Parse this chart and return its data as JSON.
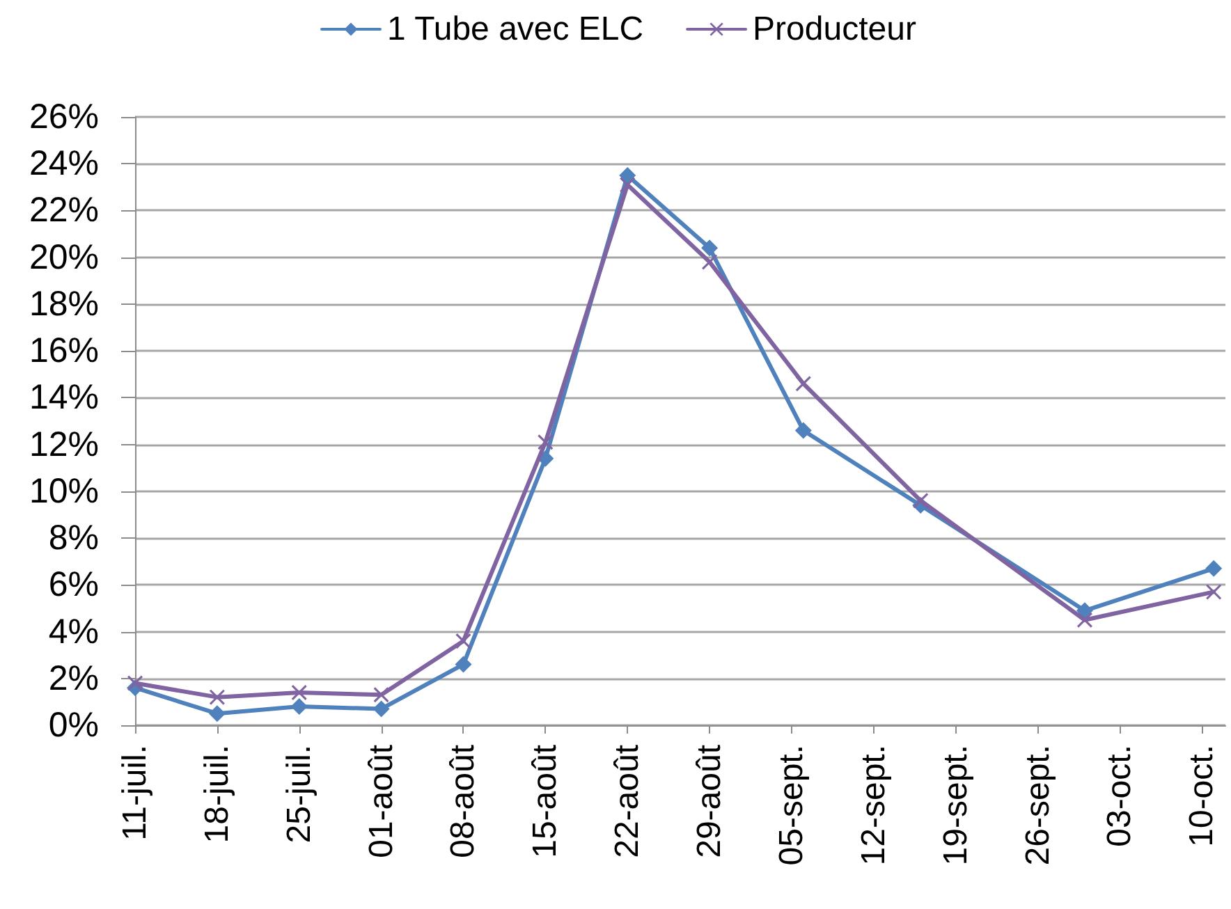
{
  "chart_data": {
    "type": "line",
    "x": [
      "--07-11",
      "--07-18",
      "--07-25",
      "--08-01",
      "--08-08",
      "--08-15",
      "--08-22",
      "--08-29",
      "--09-06",
      "--09-16",
      "--09-30",
      "--10-11"
    ],
    "series": [
      {
        "name": "1 Tube avec ELC",
        "color": "#4f81bd",
        "marker": "diamond",
        "values": [
          1.6,
          0.5,
          0.8,
          0.7,
          2.6,
          11.4,
          23.5,
          20.4,
          12.6,
          9.4,
          4.9,
          6.7
        ]
      },
      {
        "name": "Producteur",
        "color": "#8064a2",
        "marker": "cross",
        "values": [
          1.8,
          1.2,
          1.4,
          1.3,
          3.6,
          12.1,
          23.1,
          19.8,
          14.6,
          9.6,
          4.5,
          5.7
        ]
      }
    ],
    "xlim": [
      "--07-11",
      "--10-12"
    ],
    "xticks": [
      {
        "value": "--07-11",
        "label": "11-juil."
      },
      {
        "value": "--07-18",
        "label": "18-juil."
      },
      {
        "value": "--07-25",
        "label": "25-juil."
      },
      {
        "value": "--08-01",
        "label": "01-août"
      },
      {
        "value": "--08-08",
        "label": "08-août"
      },
      {
        "value": "--08-15",
        "label": "15-août"
      },
      {
        "value": "--08-22",
        "label": "22-août"
      },
      {
        "value": "--08-29",
        "label": "29-août"
      },
      {
        "value": "--09-05",
        "label": "05-sept."
      },
      {
        "value": "--09-12",
        "label": "12-sept."
      },
      {
        "value": "--09-19",
        "label": "19-sept."
      },
      {
        "value": "--09-26",
        "label": "26-sept."
      },
      {
        "value": "--10-03",
        "label": "03-oct."
      },
      {
        "value": "--10-10",
        "label": "10-oct."
      }
    ],
    "ylim": [
      0,
      26
    ],
    "yticks": [
      {
        "value": 0,
        "label": "0%"
      },
      {
        "value": 2,
        "label": "2%"
      },
      {
        "value": 4,
        "label": "4%"
      },
      {
        "value": 6,
        "label": "6%"
      },
      {
        "value": 8,
        "label": "8%"
      },
      {
        "value": 10,
        "label": "10%"
      },
      {
        "value": 12,
        "label": "12%"
      },
      {
        "value": 14,
        "label": "14%"
      },
      {
        "value": 16,
        "label": "16%"
      },
      {
        "value": 18,
        "label": "18%"
      },
      {
        "value": 20,
        "label": "20%"
      },
      {
        "value": 22,
        "label": "22%"
      },
      {
        "value": 24,
        "label": "24%"
      },
      {
        "value": 26,
        "label": "26%"
      }
    ],
    "grid": "y",
    "legend": "top",
    "line_style": "solid"
  }
}
